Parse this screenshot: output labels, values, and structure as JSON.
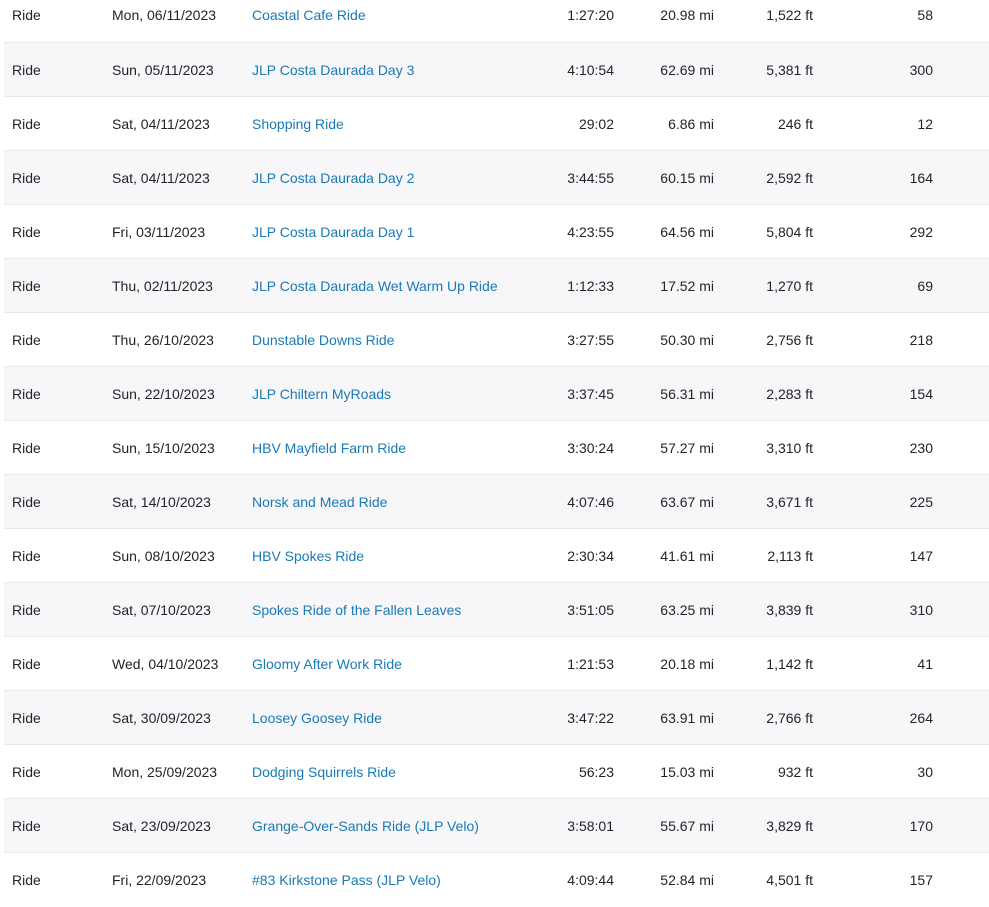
{
  "activities": [
    {
      "sport": "Ride",
      "date": "Mon, 06/11/2023",
      "title": "Coastal Cafe Ride",
      "time": "1:27:20",
      "distance": "20.98 mi",
      "elevation": "1,522 ft",
      "relative_effort": "58"
    },
    {
      "sport": "Ride",
      "date": "Sun, 05/11/2023",
      "title": "JLP Costa Daurada Day 3",
      "time": "4:10:54",
      "distance": "62.69 mi",
      "elevation": "5,381 ft",
      "relative_effort": "300"
    },
    {
      "sport": "Ride",
      "date": "Sat, 04/11/2023",
      "title": "Shopping Ride",
      "time": "29:02",
      "distance": "6.86 mi",
      "elevation": "246 ft",
      "relative_effort": "12"
    },
    {
      "sport": "Ride",
      "date": "Sat, 04/11/2023",
      "title": "JLP Costa Daurada Day 2",
      "time": "3:44:55",
      "distance": "60.15 mi",
      "elevation": "2,592 ft",
      "relative_effort": "164"
    },
    {
      "sport": "Ride",
      "date": "Fri, 03/11/2023",
      "title": "JLP Costa Daurada Day 1",
      "time": "4:23:55",
      "distance": "64.56 mi",
      "elevation": "5,804 ft",
      "relative_effort": "292"
    },
    {
      "sport": "Ride",
      "date": "Thu, 02/11/2023",
      "title": "JLP Costa Daurada Wet Warm Up Ride",
      "time": "1:12:33",
      "distance": "17.52 mi",
      "elevation": "1,270 ft",
      "relative_effort": "69"
    },
    {
      "sport": "Ride",
      "date": "Thu, 26/10/2023",
      "title": "Dunstable Downs Ride",
      "time": "3:27:55",
      "distance": "50.30 mi",
      "elevation": "2,756 ft",
      "relative_effort": "218"
    },
    {
      "sport": "Ride",
      "date": "Sun, 22/10/2023",
      "title": "JLP Chiltern MyRoads",
      "time": "3:37:45",
      "distance": "56.31 mi",
      "elevation": "2,283 ft",
      "relative_effort": "154"
    },
    {
      "sport": "Ride",
      "date": "Sun, 15/10/2023",
      "title": "HBV Mayfield Farm Ride",
      "time": "3:30:24",
      "distance": "57.27 mi",
      "elevation": "3,310 ft",
      "relative_effort": "230"
    },
    {
      "sport": "Ride",
      "date": "Sat, 14/10/2023",
      "title": "Norsk and Mead Ride",
      "time": "4:07:46",
      "distance": "63.67 mi",
      "elevation": "3,671 ft",
      "relative_effort": "225"
    },
    {
      "sport": "Ride",
      "date": "Sun, 08/10/2023",
      "title": "HBV Spokes Ride",
      "time": "2:30:34",
      "distance": "41.61 mi",
      "elevation": "2,113 ft",
      "relative_effort": "147"
    },
    {
      "sport": "Ride",
      "date": "Sat, 07/10/2023",
      "title": "Spokes Ride of the Fallen Leaves",
      "time": "3:51:05",
      "distance": "63.25 mi",
      "elevation": "3,839 ft",
      "relative_effort": "310"
    },
    {
      "sport": "Ride",
      "date": "Wed, 04/10/2023",
      "title": "Gloomy After Work Ride",
      "time": "1:21:53",
      "distance": "20.18 mi",
      "elevation": "1,142 ft",
      "relative_effort": "41"
    },
    {
      "sport": "Ride",
      "date": "Sat, 30/09/2023",
      "title": "Loosey Goosey Ride",
      "time": "3:47:22",
      "distance": "63.91 mi",
      "elevation": "2,766 ft",
      "relative_effort": "264"
    },
    {
      "sport": "Ride",
      "date": "Mon, 25/09/2023",
      "title": "Dodging Squirrels Ride",
      "time": "56:23",
      "distance": "15.03 mi",
      "elevation": "932 ft",
      "relative_effort": "30"
    },
    {
      "sport": "Ride",
      "date": "Sat, 23/09/2023",
      "title": "Grange-Over-Sands Ride (JLP Velo)",
      "time": "3:58:01",
      "distance": "55.67 mi",
      "elevation": "3,829 ft",
      "relative_effort": "170"
    },
    {
      "sport": "Ride",
      "date": "Fri, 22/09/2023",
      "title": "#83 Kirkstone Pass (JLP Velo)",
      "time": "4:09:44",
      "distance": "52.84 mi",
      "elevation": "4,501 ft",
      "relative_effort": "157"
    }
  ],
  "colors": {
    "link": "#1a7ab5",
    "text": "#242428",
    "stripe": "#f7f7fa",
    "divider": "#e9e9ea"
  }
}
